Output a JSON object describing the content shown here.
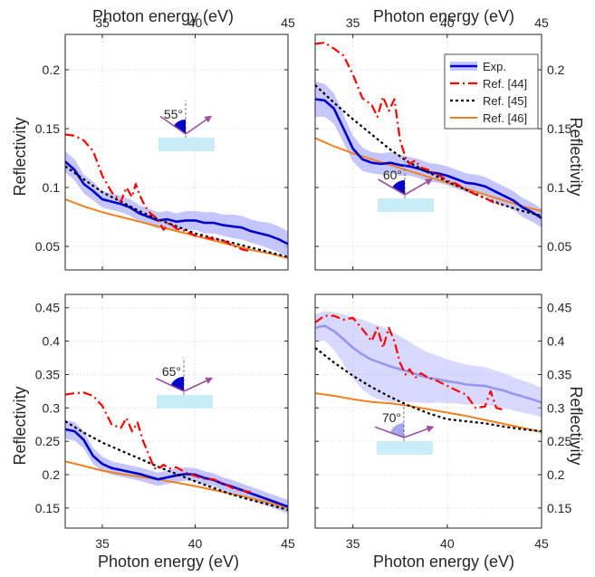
{
  "figure": {
    "xlabel": "Photon energy (eV)",
    "ylabel": "Reflectivity",
    "legend": [
      "Exp.",
      "Ref. [44]",
      "Ref. [45]",
      "Ref. [46]"
    ]
  },
  "colors": {
    "exp": "#0000cc",
    "exp_band": "#b3b3ff",
    "ref44": "#ff0000",
    "ref45": "#000000",
    "ref46": "#f08020",
    "sample": "#c8ecf8",
    "beam": "#9e4f9e"
  },
  "chart_data": [
    {
      "type": "line",
      "panel": "top-left",
      "angle_label": "55°",
      "xlim": [
        33,
        45
      ],
      "ylim": [
        0.03,
        0.23
      ],
      "xticks": [
        "35",
        "40",
        "45"
      ],
      "yticks": [
        "0.05",
        "0.1",
        "0.15",
        "0.2"
      ],
      "xlabel_position": "top",
      "ylabel_position": "left",
      "grid": true,
      "exp_faded": false,
      "series": [
        {
          "name": "Exp.",
          "x": [
            33,
            33.5,
            34,
            34.5,
            35,
            35.5,
            36,
            36.5,
            37,
            37.5,
            38,
            38.5,
            39,
            39.5,
            40,
            40.5,
            41,
            41.5,
            42,
            42.5,
            43,
            43.5,
            44,
            44.5,
            45
          ],
          "values": [
            0.122,
            0.115,
            0.103,
            0.097,
            0.09,
            0.088,
            0.086,
            0.083,
            0.078,
            0.075,
            0.072,
            0.073,
            0.071,
            0.072,
            0.072,
            0.07,
            0.07,
            0.068,
            0.067,
            0.066,
            0.063,
            0.061,
            0.059,
            0.056,
            0.052
          ],
          "band": [
            0.009,
            0.009,
            0.008,
            0.008,
            0.007,
            0.007,
            0.007,
            0.007,
            0.007,
            0.007,
            0.007,
            0.007,
            0.007,
            0.008,
            0.008,
            0.009,
            0.009,
            0.009,
            0.01,
            0.01,
            0.01,
            0.01,
            0.011,
            0.011,
            0.011
          ]
        },
        {
          "name": "Ref. [44]",
          "x": [
            33,
            33.5,
            34,
            34.5,
            35,
            35.5,
            36,
            36.3,
            36.6,
            36.8,
            37,
            37.3,
            37.6,
            38,
            38.3,
            38.6,
            39,
            39.5,
            40,
            40.5,
            41,
            41.5,
            42,
            42.3,
            42.6,
            43
          ],
          "values": [
            0.145,
            0.144,
            0.14,
            0.131,
            0.11,
            0.096,
            0.088,
            0.1,
            0.092,
            0.103,
            0.094,
            0.084,
            0.078,
            0.073,
            0.064,
            0.07,
            0.065,
            0.063,
            0.059,
            0.058,
            0.056,
            0.055,
            0.051,
            0.049,
            0.047,
            0.046
          ]
        },
        {
          "name": "Ref. [45]",
          "x": [
            33,
            34,
            35,
            36,
            37,
            38,
            39,
            40,
            41,
            42,
            43,
            44,
            45
          ],
          "values": [
            0.118,
            0.107,
            0.096,
            0.088,
            0.08,
            0.073,
            0.067,
            0.061,
            0.057,
            0.053,
            0.049,
            0.045,
            0.041
          ]
        },
        {
          "name": "Ref. [46]",
          "x": [
            33,
            34,
            35,
            36,
            37,
            38,
            39,
            40,
            41,
            42,
            43,
            44,
            45
          ],
          "values": [
            0.09,
            0.084,
            0.079,
            0.075,
            0.071,
            0.067,
            0.063,
            0.059,
            0.055,
            0.051,
            0.047,
            0.044,
            0.04
          ]
        }
      ]
    },
    {
      "type": "line",
      "panel": "top-right",
      "angle_label": "60°",
      "xlim": [
        33,
        45
      ],
      "ylim": [
        0.03,
        0.23
      ],
      "xticks": [
        "35",
        "40",
        "45"
      ],
      "yticks": [
        "0.05",
        "0.1",
        "0.15",
        "0.2"
      ],
      "xlabel_position": "top",
      "ylabel_position": "right",
      "grid": true,
      "exp_faded": false,
      "legend": "top-right",
      "series": [
        {
          "name": "Exp.",
          "x": [
            33,
            33.5,
            34,
            34.5,
            35,
            35.5,
            36,
            36.5,
            37,
            37.5,
            38,
            38.5,
            39,
            39.5,
            40,
            40.5,
            41,
            41.5,
            42,
            42.5,
            43,
            43.5,
            44,
            44.5,
            45
          ],
          "values": [
            0.175,
            0.174,
            0.167,
            0.15,
            0.133,
            0.124,
            0.121,
            0.12,
            0.121,
            0.119,
            0.118,
            0.116,
            0.113,
            0.112,
            0.11,
            0.107,
            0.104,
            0.103,
            0.101,
            0.097,
            0.093,
            0.089,
            0.083,
            0.079,
            0.074
          ],
          "band": [
            0.015,
            0.014,
            0.013,
            0.012,
            0.011,
            0.01,
            0.009,
            0.009,
            0.009,
            0.009,
            0.008,
            0.008,
            0.008,
            0.008,
            0.008,
            0.008,
            0.008,
            0.008,
            0.008,
            0.008,
            0.008,
            0.008,
            0.008,
            0.008,
            0.008
          ]
        },
        {
          "name": "Ref. [44]",
          "x": [
            33,
            33.5,
            34,
            34.5,
            35,
            35.5,
            36,
            36.3,
            36.6,
            36.9,
            37.2,
            37.5,
            37.8,
            38,
            38.3,
            38.6,
            39,
            39.5,
            40,
            40.5,
            41,
            41.5,
            42,
            42.5,
            43
          ],
          "values": [
            0.222,
            0.223,
            0.218,
            0.212,
            0.196,
            0.176,
            0.17,
            0.16,
            0.177,
            0.165,
            0.175,
            0.14,
            0.125,
            0.12,
            0.123,
            0.117,
            0.115,
            0.111,
            0.106,
            0.103,
            0.098,
            0.094,
            0.091,
            0.087,
            0.085
          ]
        },
        {
          "name": "Ref. [45]",
          "x": [
            33,
            34,
            35,
            36,
            37,
            38,
            39,
            40,
            41,
            42,
            43,
            44,
            45
          ],
          "values": [
            0.187,
            0.172,
            0.158,
            0.145,
            0.132,
            0.121,
            0.113,
            0.105,
            0.098,
            0.091,
            0.085,
            0.08,
            0.076
          ]
        },
        {
          "name": "Ref. [46]",
          "x": [
            33,
            34,
            35,
            36,
            37,
            38,
            39,
            40,
            41,
            42,
            43,
            44,
            45
          ],
          "values": [
            0.142,
            0.135,
            0.129,
            0.124,
            0.119,
            0.114,
            0.109,
            0.104,
            0.099,
            0.094,
            0.089,
            0.084,
            0.08
          ]
        }
      ]
    },
    {
      "type": "line",
      "panel": "bottom-left",
      "angle_label": "65°",
      "xlim": [
        33,
        45
      ],
      "ylim": [
        0.12,
        0.47
      ],
      "xticks": [
        "35",
        "40",
        "45"
      ],
      "yticks": [
        "0.15",
        "0.2",
        "0.25",
        "0.3",
        "0.35",
        "0.4",
        "0.45"
      ],
      "xlabel_position": "bottom",
      "ylabel_position": "left",
      "grid": true,
      "exp_faded": false,
      "series": [
        {
          "name": "Exp.",
          "x": [
            33,
            33.5,
            34,
            34.5,
            35,
            35.5,
            36,
            36.5,
            37,
            37.5,
            38,
            38.5,
            39,
            39.5,
            40,
            40.5,
            41,
            41.5,
            42,
            42.5,
            43,
            43.5,
            44,
            44.5,
            45
          ],
          "values": [
            0.268,
            0.265,
            0.252,
            0.228,
            0.216,
            0.21,
            0.207,
            0.204,
            0.201,
            0.197,
            0.193,
            0.196,
            0.199,
            0.201,
            0.2,
            0.195,
            0.192,
            0.186,
            0.182,
            0.177,
            0.172,
            0.167,
            0.162,
            0.157,
            0.152
          ],
          "band": [
            0.014,
            0.014,
            0.013,
            0.012,
            0.011,
            0.01,
            0.01,
            0.01,
            0.01,
            0.01,
            0.01,
            0.01,
            0.01,
            0.01,
            0.01,
            0.01,
            0.01,
            0.01,
            0.01,
            0.01,
            0.01,
            0.01,
            0.01,
            0.01,
            0.01
          ]
        },
        {
          "name": "Ref. [44]",
          "x": [
            33,
            33.5,
            34,
            34.5,
            35,
            35.5,
            36,
            36.3,
            36.6,
            36.9,
            37.2,
            37.5,
            37.8,
            38,
            38.3,
            38.6,
            39,
            39.5,
            40,
            40.5,
            41,
            41.5,
            42,
            42.5,
            43
          ],
          "values": [
            0.32,
            0.322,
            0.323,
            0.318,
            0.303,
            0.275,
            0.27,
            0.285,
            0.265,
            0.278,
            0.25,
            0.23,
            0.21,
            0.208,
            0.215,
            0.209,
            0.211,
            0.203,
            0.198,
            0.194,
            0.193,
            0.187,
            0.18,
            0.176,
            0.174
          ]
        },
        {
          "name": "Ref. [45]",
          "x": [
            33,
            34,
            35,
            36,
            37,
            38,
            39,
            40,
            41,
            42,
            43,
            44,
            45
          ],
          "values": [
            0.28,
            0.263,
            0.248,
            0.236,
            0.224,
            0.212,
            0.201,
            0.19,
            0.18,
            0.17,
            0.162,
            0.155,
            0.147
          ]
        },
        {
          "name": "Ref. [46]",
          "x": [
            33,
            34,
            35,
            36,
            37,
            38,
            39,
            40,
            41,
            42,
            43,
            44,
            45
          ],
          "values": [
            0.22,
            0.213,
            0.206,
            0.201,
            0.197,
            0.193,
            0.188,
            0.183,
            0.177,
            0.171,
            0.165,
            0.158,
            0.15
          ]
        }
      ]
    },
    {
      "type": "line",
      "panel": "bottom-right",
      "angle_label": "70°",
      "xlim": [
        33,
        45
      ],
      "ylim": [
        0.12,
        0.47
      ],
      "xticks": [
        "35",
        "40",
        "45"
      ],
      "yticks": [
        "0.15",
        "0.2",
        "0.25",
        "0.3",
        "0.35",
        "0.4",
        "0.45"
      ],
      "xlabel_position": "bottom",
      "ylabel_position": "right",
      "grid": true,
      "exp_faded": true,
      "series": [
        {
          "name": "Exp.",
          "x": [
            33,
            33.5,
            34,
            34.5,
            35,
            35.5,
            36,
            36.5,
            37,
            37.5,
            38,
            38.5,
            39,
            39.5,
            40,
            40.5,
            41,
            41.5,
            42,
            42.5,
            43,
            43.5,
            44,
            44.5,
            45
          ],
          "values": [
            0.42,
            0.423,
            0.415,
            0.403,
            0.39,
            0.38,
            0.372,
            0.367,
            0.362,
            0.358,
            0.354,
            0.349,
            0.345,
            0.343,
            0.34,
            0.338,
            0.335,
            0.334,
            0.333,
            0.329,
            0.326,
            0.321,
            0.317,
            0.313,
            0.308
          ],
          "band": [
            0.02,
            0.022,
            0.028,
            0.037,
            0.046,
            0.052,
            0.055,
            0.055,
            0.053,
            0.049,
            0.045,
            0.041,
            0.038,
            0.035,
            0.033,
            0.031,
            0.03,
            0.029,
            0.028,
            0.027,
            0.026,
            0.025,
            0.024,
            0.023,
            0.022
          ]
        },
        {
          "name": "Ref. [44]",
          "x": [
            33,
            33.5,
            34,
            34.5,
            35,
            35.5,
            36,
            36.3,
            36.6,
            36.9,
            37.2,
            37.5,
            37.8,
            38,
            38.3,
            38.6,
            39,
            39.5,
            40,
            40.5,
            41,
            41.5,
            42,
            42.3,
            42.6,
            43
          ],
          "values": [
            0.428,
            0.438,
            0.438,
            0.432,
            0.435,
            0.418,
            0.4,
            0.42,
            0.39,
            0.42,
            0.4,
            0.367,
            0.35,
            0.358,
            0.345,
            0.352,
            0.345,
            0.34,
            0.333,
            0.326,
            0.32,
            0.3,
            0.302,
            0.325,
            0.3,
            0.297
          ]
        },
        {
          "name": "Ref. [45]",
          "x": [
            33,
            34,
            35,
            36,
            37,
            38,
            39,
            40,
            41,
            42,
            43,
            44,
            45
          ],
          "values": [
            0.39,
            0.368,
            0.348,
            0.331,
            0.316,
            0.303,
            0.292,
            0.283,
            0.28,
            0.277,
            0.272,
            0.268,
            0.265
          ]
        },
        {
          "name": "Ref. [46]",
          "x": [
            33,
            34,
            35,
            36,
            37,
            38,
            39,
            40,
            41,
            42,
            43,
            44,
            45
          ],
          "values": [
            0.322,
            0.318,
            0.313,
            0.309,
            0.307,
            0.303,
            0.298,
            0.293,
            0.288,
            0.282,
            0.276,
            0.27,
            0.264
          ]
        }
      ]
    }
  ]
}
